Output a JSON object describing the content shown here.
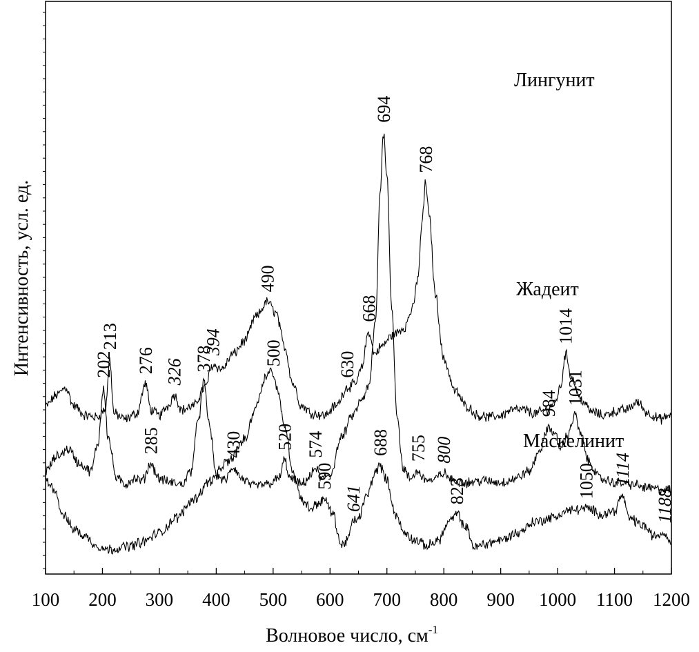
{
  "chart_data": {
    "type": "line",
    "xlabel": "Волновое число, см",
    "xlabel_sup": "-1",
    "ylabel": "Интенсивность, усл. ед.",
    "xlim": [
      100,
      1200
    ],
    "xticks": [
      "100",
      "200",
      "300",
      "400",
      "500",
      "600",
      "700",
      "800",
      "900",
      "1000",
      "1100",
      "1200"
    ],
    "yticks_labeled": false,
    "grid": false,
    "legend": "none",
    "series": [
      {
        "name": "Лингунит",
        "baseline": 0.72,
        "points": [
          [
            100,
            0.1
          ],
          [
            120,
            0.16
          ],
          [
            135,
            0.2
          ],
          [
            150,
            0.1
          ],
          [
            170,
            0.05
          ],
          [
            190,
            0.04
          ],
          [
            205,
            0.08
          ],
          [
            213,
            0.35
          ],
          [
            220,
            0.06
          ],
          [
            240,
            0.03
          ],
          [
            260,
            0.06
          ],
          [
            276,
            0.22
          ],
          [
            285,
            0.08
          ],
          [
            300,
            0.05
          ],
          [
            315,
            0.1
          ],
          [
            326,
            0.16
          ],
          [
            340,
            0.08
          ],
          [
            360,
            0.1
          ],
          [
            380,
            0.2
          ],
          [
            394,
            0.32
          ],
          [
            410,
            0.3
          ],
          [
            430,
            0.38
          ],
          [
            450,
            0.45
          ],
          [
            470,
            0.58
          ],
          [
            490,
            0.66
          ],
          [
            505,
            0.6
          ],
          [
            520,
            0.42
          ],
          [
            535,
            0.22
          ],
          [
            550,
            0.1
          ],
          [
            570,
            0.06
          ],
          [
            590,
            0.05
          ],
          [
            610,
            0.1
          ],
          [
            630,
            0.2
          ],
          [
            645,
            0.22
          ],
          [
            655,
            0.3
          ],
          [
            668,
            0.5
          ],
          [
            678,
            0.38
          ],
          [
            690,
            0.42
          ],
          [
            710,
            0.48
          ],
          [
            730,
            0.52
          ],
          [
            745,
            0.62
          ],
          [
            755,
            0.8
          ],
          [
            762,
            1.1
          ],
          [
            768,
            1.3
          ],
          [
            775,
            1.1
          ],
          [
            785,
            0.7
          ],
          [
            800,
            0.35
          ],
          [
            820,
            0.18
          ],
          [
            840,
            0.1
          ],
          [
            860,
            0.05
          ],
          [
            880,
            0.04
          ],
          [
            900,
            0.05
          ],
          [
            920,
            0.08
          ],
          [
            940,
            0.08
          ],
          [
            960,
            0.06
          ],
          [
            980,
            0.08
          ],
          [
            995,
            0.12
          ],
          [
            1005,
            0.2
          ],
          [
            1014,
            0.38
          ],
          [
            1025,
            0.25
          ],
          [
            1040,
            0.14
          ],
          [
            1060,
            0.07
          ],
          [
            1080,
            0.05
          ],
          [
            1100,
            0.07
          ],
          [
            1120,
            0.08
          ],
          [
            1140,
            0.12
          ],
          [
            1160,
            0.06
          ],
          [
            1180,
            0.03
          ],
          [
            1200,
            0.05
          ]
        ],
        "peaks": [
          {
            "x": 213,
            "label": "213",
            "italic": false
          },
          {
            "x": 276,
            "label": "276",
            "italic": false
          },
          {
            "x": 326,
            "label": "326",
            "italic": true
          },
          {
            "x": 394,
            "label": "394",
            "italic": true
          },
          {
            "x": 490,
            "label": "490",
            "italic": false
          },
          {
            "x": 630,
            "label": "630",
            "italic": false
          },
          {
            "x": 668,
            "label": "668",
            "italic": false
          },
          {
            "x": 768,
            "label": "768",
            "italic": false
          },
          {
            "x": 1014,
            "label": "1014",
            "italic": false
          }
        ]
      },
      {
        "name": "Жадеит",
        "baseline": 0.37,
        "points": [
          [
            100,
            0.1
          ],
          [
            120,
            0.18
          ],
          [
            140,
            0.22
          ],
          [
            160,
            0.14
          ],
          [
            180,
            0.1
          ],
          [
            192,
            0.25
          ],
          [
            202,
            0.55
          ],
          [
            210,
            0.28
          ],
          [
            225,
            0.06
          ],
          [
            240,
            0.03
          ],
          [
            255,
            0.06
          ],
          [
            270,
            0.05
          ],
          [
            285,
            0.14
          ],
          [
            300,
            0.06
          ],
          [
            320,
            0.04
          ],
          [
            340,
            0.03
          ],
          [
            355,
            0.1
          ],
          [
            370,
            0.4
          ],
          [
            378,
            0.58
          ],
          [
            388,
            0.35
          ],
          [
            400,
            0.08
          ],
          [
            415,
            0.05
          ],
          [
            430,
            0.12
          ],
          [
            445,
            0.06
          ],
          [
            465,
            0.02
          ],
          [
            490,
            0.03
          ],
          [
            510,
            0.06
          ],
          [
            520,
            0.16
          ],
          [
            530,
            0.06
          ],
          [
            550,
            0.03
          ],
          [
            565,
            0.07
          ],
          [
            574,
            0.12
          ],
          [
            585,
            0.06
          ],
          [
            600,
            0.08
          ],
          [
            620,
            0.28
          ],
          [
            640,
            0.4
          ],
          [
            655,
            0.48
          ],
          [
            668,
            0.55
          ],
          [
            680,
            0.9
          ],
          [
            688,
            1.6
          ],
          [
            694,
            1.92
          ],
          [
            700,
            1.7
          ],
          [
            708,
            1.0
          ],
          [
            718,
            0.4
          ],
          [
            728,
            0.12
          ],
          [
            740,
            0.06
          ],
          [
            755,
            0.1
          ],
          [
            765,
            0.06
          ],
          [
            780,
            0.05
          ],
          [
            800,
            0.09
          ],
          [
            815,
            0.05
          ],
          [
            840,
            0.04
          ],
          [
            870,
            0.05
          ],
          [
            900,
            0.04
          ],
          [
            925,
            0.06
          ],
          [
            950,
            0.1
          ],
          [
            970,
            0.22
          ],
          [
            984,
            0.34
          ],
          [
            995,
            0.3
          ],
          [
            1005,
            0.22
          ],
          [
            1015,
            0.28
          ],
          [
            1031,
            0.4
          ],
          [
            1040,
            0.3
          ],
          [
            1055,
            0.15
          ],
          [
            1075,
            0.06
          ],
          [
            1100,
            0.04
          ],
          [
            1130,
            0.03
          ],
          [
            1160,
            0.01
          ],
          [
            1185,
            0.0
          ],
          [
            1200,
            0.0
          ]
        ],
        "peaks": [
          {
            "x": 202,
            "label": "202",
            "italic": false
          },
          {
            "x": 285,
            "label": "285",
            "italic": false
          },
          {
            "x": 378,
            "label": "378",
            "italic": false
          },
          {
            "x": 430,
            "label": "430",
            "italic": false
          },
          {
            "x": 520,
            "label": "520",
            "italic": false
          },
          {
            "x": 574,
            "label": "574",
            "italic": false
          },
          {
            "x": 694,
            "label": "694",
            "italic": false
          },
          {
            "x": 755,
            "label": "755",
            "italic": false
          },
          {
            "x": 800,
            "label": "800",
            "italic": true
          },
          {
            "x": 984,
            "label": "984",
            "italic": false
          },
          {
            "x": 1031,
            "label": "1031",
            "italic": false
          },
          {
            "x": 1031,
            "label": "",
            "italic": false
          }
        ]
      },
      {
        "name": "Маскелинит",
        "baseline": 0.02,
        "points": [
          [
            100,
            0.4
          ],
          [
            115,
            0.36
          ],
          [
            130,
            0.22
          ],
          [
            150,
            0.14
          ],
          [
            170,
            0.1
          ],
          [
            190,
            0.05
          ],
          [
            210,
            0.03
          ],
          [
            230,
            0.04
          ],
          [
            250,
            0.05
          ],
          [
            270,
            0.07
          ],
          [
            300,
            0.12
          ],
          [
            330,
            0.2
          ],
          [
            360,
            0.3
          ],
          [
            390,
            0.4
          ],
          [
            420,
            0.5
          ],
          [
            450,
            0.62
          ],
          [
            470,
            0.8
          ],
          [
            485,
            0.95
          ],
          [
            495,
            1.0
          ],
          [
            505,
            0.92
          ],
          [
            520,
            0.7
          ],
          [
            535,
            0.45
          ],
          [
            550,
            0.3
          ],
          [
            565,
            0.25
          ],
          [
            580,
            0.28
          ],
          [
            590,
            0.3
          ],
          [
            605,
            0.22
          ],
          [
            620,
            0.05
          ],
          [
            630,
            0.08
          ],
          [
            641,
            0.18
          ],
          [
            650,
            0.2
          ],
          [
            665,
            0.32
          ],
          [
            680,
            0.45
          ],
          [
            688,
            0.48
          ],
          [
            700,
            0.4
          ],
          [
            715,
            0.22
          ],
          [
            730,
            0.12
          ],
          [
            750,
            0.08
          ],
          [
            770,
            0.05
          ],
          [
            790,
            0.08
          ],
          [
            810,
            0.18
          ],
          [
            823,
            0.22
          ],
          [
            838,
            0.15
          ],
          [
            855,
            0.04
          ],
          [
            870,
            0.06
          ],
          [
            900,
            0.08
          ],
          [
            930,
            0.12
          ],
          [
            960,
            0.18
          ],
          [
            990,
            0.2
          ],
          [
            1020,
            0.24
          ],
          [
            1050,
            0.25
          ],
          [
            1080,
            0.22
          ],
          [
            1100,
            0.24
          ],
          [
            1114,
            0.32
          ],
          [
            1125,
            0.2
          ],
          [
            1150,
            0.16
          ],
          [
            1170,
            0.1
          ],
          [
            1188,
            0.12
          ],
          [
            1200,
            0.06
          ]
        ],
        "peaks": [
          {
            "x": 500,
            "label": "500",
            "italic": false
          },
          {
            "x": 590,
            "label": "590",
            "italic": false
          },
          {
            "x": 641,
            "label": "641",
            "italic": true
          },
          {
            "x": 688,
            "label": "688",
            "italic": false
          },
          {
            "x": 823,
            "label": "823",
            "italic": false
          },
          {
            "x": 1050,
            "label": "1050",
            "italic": false
          },
          {
            "x": 1114,
            "label": "1114",
            "italic": true
          },
          {
            "x": 1188,
            "label": "1188",
            "italic": true
          }
        ]
      }
    ]
  }
}
